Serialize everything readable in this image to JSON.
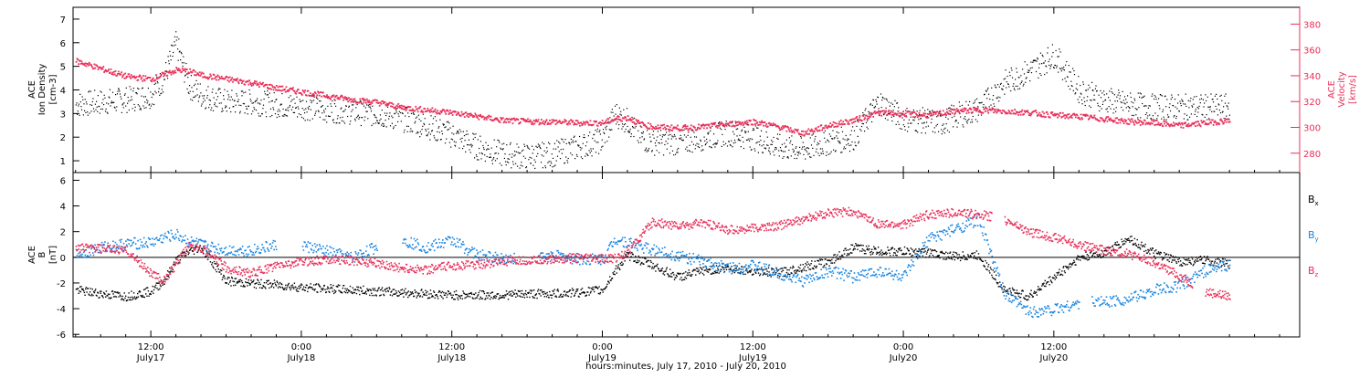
{
  "colors": {
    "black": "#000000",
    "red": "#e8305a",
    "blue": "#1a86e0"
  },
  "x_axis": {
    "title": "hours:minutes, July 17, 2010 - July 20, 2010",
    "ticks": [
      {
        "time": "12:00",
        "date": "July17"
      },
      {
        "time": "0:00",
        "date": "July18"
      },
      {
        "time": "12:00",
        "date": "July18"
      },
      {
        "time": "0:00",
        "date": "July19"
      },
      {
        "time": "12:00",
        "date": "July19"
      },
      {
        "time": "0:00",
        "date": "July20"
      },
      {
        "time": "12:00",
        "date": "July20"
      }
    ]
  },
  "chart_data": [
    {
      "type": "scatter",
      "panel": "top",
      "x_unit": "hours since 2010-07-17 00:00",
      "xlim": [
        5.8,
        103.6
      ],
      "left_axis": {
        "label_line1": "ACE",
        "label_line2": "Ion Density",
        "label_line3": "[cm-3]",
        "ylim": [
          0.5,
          7.5
        ],
        "ticks": [
          "1",
          "2",
          "3",
          "4",
          "5",
          "6",
          "7"
        ]
      },
      "right_axis": {
        "label_line1": "ACE",
        "label_line2": "Velocity",
        "label_line3": "[km/s]",
        "ylim": [
          265,
          393
        ],
        "ticks": [
          "280",
          "300",
          "320",
          "340",
          "360",
          "380"
        ]
      },
      "series": [
        {
          "name": "density",
          "color": "#000000",
          "axis": "left",
          "x": [
            6,
            8,
            10,
            12,
            13,
            14,
            15,
            16,
            18,
            20,
            22,
            24,
            26,
            28,
            30,
            32,
            34,
            36,
            38,
            40,
            42,
            44,
            46,
            48,
            49,
            50,
            51,
            52,
            54,
            56,
            58,
            60,
            62,
            64,
            66,
            68,
            70,
            72,
            74,
            75,
            76,
            78,
            80,
            82,
            84,
            86,
            88,
            90,
            92,
            94,
            96,
            98
          ],
          "y": [
            3.4,
            3.5,
            3.6,
            3.8,
            4.5,
            6.0,
            4.2,
            3.8,
            3.5,
            3.5,
            3.4,
            3.3,
            3.2,
            3.1,
            3.0,
            2.8,
            2.5,
            2.1,
            1.6,
            1.3,
            1.2,
            1.3,
            1.6,
            1.9,
            3.0,
            2.7,
            2.0,
            1.8,
            1.8,
            2.0,
            2.2,
            2.0,
            1.6,
            1.5,
            1.8,
            2.0,
            3.5,
            2.8,
            2.7,
            2.6,
            2.9,
            3.2,
            4.3,
            4.8,
            5.5,
            4.0,
            3.6,
            3.4,
            3.3,
            3.3,
            3.3,
            3.3
          ]
        },
        {
          "name": "velocity",
          "color": "#e8305a",
          "axis": "right",
          "x": [
            6,
            8,
            10,
            12,
            14,
            15,
            16,
            18,
            20,
            22,
            24,
            26,
            28,
            30,
            32,
            34,
            36,
            38,
            40,
            42,
            44,
            46,
            48,
            49,
            50,
            51,
            52,
            54,
            56,
            58,
            60,
            62,
            64,
            66,
            68,
            70,
            72,
            74,
            76,
            78,
            80,
            82,
            84,
            86,
            88,
            90,
            92,
            94,
            96,
            98
          ],
          "y": [
            352,
            346,
            340,
            338,
            345,
            344,
            341,
            338,
            335,
            331,
            328,
            325,
            322,
            320,
            316,
            314,
            312,
            309,
            306,
            305,
            305,
            304,
            304,
            307,
            308,
            303,
            301,
            300,
            301,
            303,
            305,
            301,
            296,
            302,
            306,
            312,
            311,
            310,
            313,
            314,
            313,
            312,
            310,
            309,
            307,
            305,
            304,
            302,
            304,
            306
          ]
        }
      ]
    },
    {
      "type": "scatter",
      "panel": "bottom",
      "x_unit": "hours since 2010-07-17 00:00",
      "xlim": [
        5.8,
        103.6
      ],
      "y_axis": {
        "label_line1": "ACE",
        "label_line2": "B",
        "label_line3": "[nT]",
        "ylim": [
          -6.2,
          6.6
        ],
        "ticks": [
          "-6",
          "-4",
          "-2",
          "0",
          "2",
          "4",
          "6"
        ]
      },
      "zero_line": true,
      "legend": [
        {
          "text": "B",
          "sub": "x",
          "color": "#000000"
        },
        {
          "text": "B",
          "sub": "y",
          "color": "#1a86e0"
        },
        {
          "text": "B",
          "sub": "z",
          "color": "#e8305a"
        }
      ],
      "series": [
        {
          "name": "Bx",
          "color": "#000000",
          "x": [
            6,
            8,
            10,
            12,
            13,
            14,
            15,
            16,
            18,
            20,
            22,
            24,
            26,
            28,
            30,
            32,
            34,
            36,
            38,
            40,
            42,
            44,
            46,
            48,
            49,
            50,
            52,
            54,
            56,
            58,
            60,
            62,
            64,
            66,
            68,
            70,
            72,
            74,
            76,
            78,
            80,
            82,
            84,
            86,
            88,
            90,
            92,
            94,
            96,
            98
          ],
          "y": [
            -2.5,
            -2.8,
            -3.0,
            -2.6,
            -1.8,
            -0.2,
            0.5,
            0.8,
            -1.8,
            -2.0,
            -2.1,
            -2.3,
            -2.4,
            -2.5,
            -2.6,
            -2.7,
            -2.8,
            -2.9,
            -2.9,
            -2.9,
            -2.8,
            -2.8,
            -2.7,
            -2.5,
            -1.0,
            0.2,
            -0.6,
            -1.5,
            -1.0,
            -0.8,
            -1.0,
            -1.2,
            -0.7,
            -0.3,
            0.8,
            0.5,
            0.5,
            0.4,
            0.1,
            0.2,
            -2.5,
            -3.0,
            -1.5,
            0.0,
            0.4,
            1.5,
            0.3,
            -0.3,
            -0.2,
            -0.5
          ]
        },
        {
          "name": "By",
          "color": "#1a86e0",
          "x": [
            6,
            8,
            10,
            12,
            13,
            14,
            15,
            16,
            18,
            20,
            22,
            24,
            26,
            28,
            30,
            32,
            34,
            36,
            38,
            40,
            42,
            44,
            46,
            48,
            49,
            50,
            52,
            54,
            56,
            58,
            60,
            62,
            64,
            66,
            68,
            70,
            72,
            74,
            76,
            78,
            80,
            82,
            84,
            86,
            88,
            90,
            92,
            94,
            96,
            98
          ],
          "y": [
            0.3,
            0.8,
            1.1,
            1.2,
            1.6,
            1.8,
            1.3,
            1.0,
            0.6,
            0.6,
            1.0,
            1.0,
            0.5,
            0.0,
            0.9,
            1.4,
            0.8,
            1.4,
            0.2,
            0.0,
            -0.1,
            0.2,
            -0.1,
            -0.1,
            1.5,
            1.2,
            0.6,
            0.2,
            -0.3,
            -0.8,
            -0.6,
            -1.2,
            -1.8,
            -1.0,
            -1.5,
            -1.0,
            -1.5,
            1.5,
            2.2,
            3.0,
            -2.8,
            -4.2,
            -4.0,
            -3.5,
            -3.4,
            -3.2,
            -2.5,
            -2.2,
            -1.0,
            -0.5
          ]
        },
        {
          "name": "Bz",
          "color": "#e8305a",
          "x": [
            6,
            8,
            10,
            12,
            13,
            14,
            15,
            16,
            18,
            20,
            22,
            24,
            26,
            28,
            30,
            32,
            34,
            36,
            38,
            40,
            42,
            44,
            46,
            48,
            49,
            50,
            52,
            54,
            56,
            58,
            60,
            62,
            64,
            66,
            68,
            70,
            72,
            74,
            76,
            78,
            80,
            82,
            84,
            86,
            88,
            90,
            92,
            94,
            96,
            98
          ],
          "y": [
            0.8,
            0.7,
            0.6,
            -1.2,
            -1.8,
            -0.5,
            1.0,
            0.8,
            -0.8,
            -1.2,
            -0.6,
            -0.3,
            -0.1,
            -0.2,
            -0.4,
            -0.8,
            -0.9,
            -0.6,
            -0.5,
            -0.3,
            -0.2,
            -0.1,
            0.0,
            -0.1,
            0.0,
            0.5,
            2.8,
            2.5,
            2.7,
            2.2,
            2.3,
            2.5,
            3.0,
            3.5,
            3.6,
            2.6,
            2.6,
            3.4,
            3.5,
            3.4,
            3.0,
            2.0,
            1.6,
            1.0,
            0.6,
            0.3,
            -0.4,
            -1.4,
            -2.6,
            -3.0
          ]
        }
      ]
    }
  ]
}
